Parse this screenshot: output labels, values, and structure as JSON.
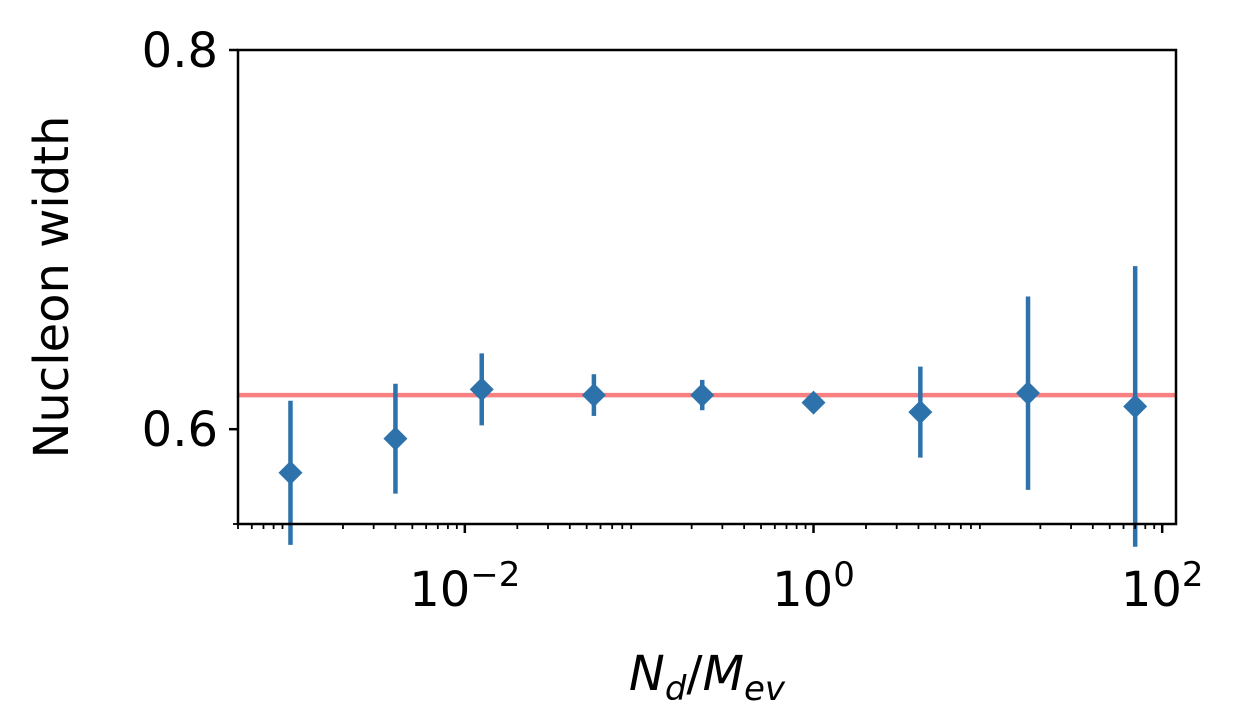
{
  "chart_data": {
    "type": "scatter",
    "title": "",
    "xscale": "log",
    "xlim": [
      0.0005,
      120
    ],
    "ylim": [
      0.55,
      0.8
    ],
    "grid": false,
    "ylabel": "Nucleon width",
    "xlabel": {
      "N": "N",
      "d": "d",
      "slash": "/",
      "M": "M",
      "ev": "ev"
    },
    "x_ticks": [
      {
        "value": 0.01,
        "base": "10",
        "exp": "−2"
      },
      {
        "value": 1,
        "base": "10",
        "exp": "0"
      },
      {
        "value": 100,
        "base": "10",
        "exp": "2"
      }
    ],
    "y_ticks": [
      {
        "value": 0.6,
        "label": "0.6"
      },
      {
        "value": 0.8,
        "label": "0.8"
      }
    ],
    "y_minor_ticks": [
      0.55
    ],
    "reference_line": {
      "y": 0.618,
      "color": "#f88080"
    },
    "marker": {
      "shape": "diamond",
      "color": "#2e72ab"
    },
    "points": [
      {
        "x": 0.001,
        "y": 0.577,
        "err": 0.038
      },
      {
        "x": 0.004,
        "y": 0.595,
        "err": 0.029
      },
      {
        "x": 0.0125,
        "y": 0.621,
        "err": 0.019
      },
      {
        "x": 0.055,
        "y": 0.618,
        "err": 0.011
      },
      {
        "x": 0.23,
        "y": 0.618,
        "err": 0.008
      },
      {
        "x": 1.0,
        "y": 0.614,
        "err": 0.003
      },
      {
        "x": 4.1,
        "y": 0.609,
        "err": 0.024
      },
      {
        "x": 17,
        "y": 0.619,
        "err": 0.051
      },
      {
        "x": 70,
        "y": 0.612,
        "err": 0.074
      }
    ]
  }
}
